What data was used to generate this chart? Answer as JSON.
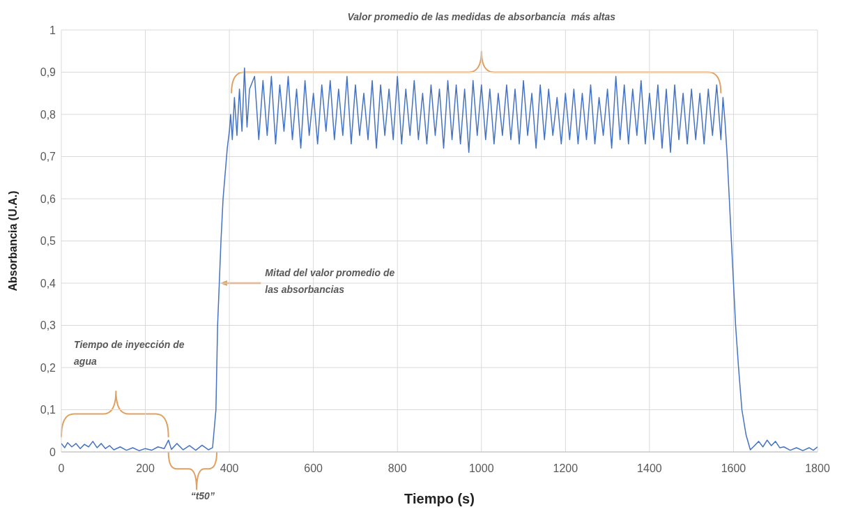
{
  "chart_data": {
    "type": "line",
    "xlabel": "Tiempo (s)",
    "ylabel": "Absorbancia (U.A.)",
    "xlim": [
      0,
      1800
    ],
    "xticks": [
      0,
      200,
      400,
      600,
      800,
      1000,
      1200,
      1400,
      1600,
      1800
    ],
    "ylim": [
      0,
      1
    ],
    "yticks": [
      0,
      {
        "value": 0.1,
        "label": "0,1"
      },
      {
        "value": 0.2,
        "label": "0,2"
      },
      {
        "value": 0.3,
        "label": "0,3"
      },
      {
        "value": 0.4,
        "label": "0,4"
      },
      {
        "value": 0.5,
        "label": "0,5"
      },
      {
        "value": 0.6,
        "label": "0,6"
      },
      {
        "value": 0.7,
        "label": "0,7"
      },
      {
        "value": 0.8,
        "label": "0,8"
      },
      {
        "value": 0.9,
        "label": "0,9"
      },
      1
    ],
    "grid": true,
    "annotations": [
      "Valor promedio de las medidas de absorbancia  más altas",
      "Mitad del valor promedio de las absorbancias",
      "Tiempo de inyección de agua",
      "“t50”"
    ],
    "x": [
      0,
      8,
      15,
      25,
      35,
      45,
      55,
      65,
      75,
      85,
      95,
      105,
      115,
      125,
      140,
      155,
      170,
      185,
      200,
      215,
      230,
      245,
      255,
      262,
      275,
      290,
      305,
      320,
      335,
      350,
      360,
      368,
      372,
      376,
      380,
      385,
      390,
      395,
      400,
      403,
      407,
      412,
      418,
      424,
      430,
      436,
      442,
      448,
      460,
      470,
      480,
      490,
      500,
      510,
      520,
      530,
      540,
      550,
      560,
      570,
      580,
      590,
      600,
      610,
      620,
      630,
      640,
      650,
      660,
      670,
      680,
      690,
      700,
      710,
      720,
      730,
      740,
      750,
      760,
      770,
      780,
      790,
      800,
      810,
      820,
      830,
      840,
      850,
      860,
      870,
      880,
      890,
      900,
      910,
      920,
      930,
      940,
      950,
      960,
      970,
      980,
      990,
      1000,
      1010,
      1020,
      1030,
      1040,
      1050,
      1060,
      1070,
      1080,
      1090,
      1100,
      1110,
      1120,
      1130,
      1140,
      1150,
      1160,
      1170,
      1180,
      1190,
      1200,
      1210,
      1220,
      1230,
      1240,
      1250,
      1260,
      1270,
      1280,
      1290,
      1300,
      1310,
      1320,
      1330,
      1340,
      1350,
      1360,
      1370,
      1380,
      1390,
      1400,
      1410,
      1420,
      1430,
      1440,
      1450,
      1460,
      1470,
      1480,
      1490,
      1500,
      1510,
      1520,
      1530,
      1540,
      1550,
      1560,
      1570,
      1575,
      1580,
      1585,
      1590,
      1595,
      1600,
      1605,
      1612,
      1620,
      1630,
      1640,
      1650,
      1660,
      1670,
      1680,
      1690,
      1700,
      1710,
      1720,
      1735,
      1750,
      1765,
      1780,
      1790,
      1800
    ],
    "series": [
      {
        "color": "#4472c4",
        "values": [
          0.02,
          0.01,
          0.022,
          0.012,
          0.02,
          0.008,
          0.018,
          0.012,
          0.025,
          0.01,
          0.02,
          0.008,
          0.015,
          0.005,
          0.012,
          0.004,
          0.01,
          0.003,
          0.008,
          0.004,
          0.012,
          0.008,
          0.028,
          0.006,
          0.02,
          0.005,
          0.015,
          0.004,
          0.016,
          0.005,
          0.01,
          0.1,
          0.3,
          0.4,
          0.5,
          0.6,
          0.66,
          0.72,
          0.76,
          0.8,
          0.74,
          0.84,
          0.75,
          0.86,
          0.76,
          0.91,
          0.77,
          0.86,
          0.89,
          0.74,
          0.88,
          0.75,
          0.89,
          0.73,
          0.87,
          0.76,
          0.89,
          0.74,
          0.86,
          0.72,
          0.88,
          0.75,
          0.85,
          0.73,
          0.87,
          0.76,
          0.88,
          0.74,
          0.86,
          0.75,
          0.89,
          0.73,
          0.87,
          0.75,
          0.85,
          0.74,
          0.88,
          0.72,
          0.87,
          0.75,
          0.86,
          0.74,
          0.89,
          0.73,
          0.86,
          0.75,
          0.88,
          0.74,
          0.85,
          0.73,
          0.87,
          0.75,
          0.86,
          0.72,
          0.88,
          0.74,
          0.87,
          0.73,
          0.86,
          0.71,
          0.88,
          0.75,
          0.87,
          0.74,
          0.86,
          0.73,
          0.85,
          0.75,
          0.87,
          0.74,
          0.86,
          0.73,
          0.88,
          0.75,
          0.85,
          0.72,
          0.87,
          0.74,
          0.86,
          0.75,
          0.84,
          0.73,
          0.85,
          0.74,
          0.86,
          0.73,
          0.85,
          0.74,
          0.87,
          0.73,
          0.84,
          0.75,
          0.86,
          0.72,
          0.89,
          0.74,
          0.87,
          0.73,
          0.86,
          0.75,
          0.88,
          0.73,
          0.85,
          0.74,
          0.87,
          0.72,
          0.86,
          0.71,
          0.87,
          0.74,
          0.85,
          0.73,
          0.86,
          0.74,
          0.85,
          0.73,
          0.86,
          0.75,
          0.87,
          0.74,
          0.84,
          0.78,
          0.7,
          0.6,
          0.5,
          0.4,
          0.3,
          0.2,
          0.1,
          0.04,
          0.005,
          0.015,
          0.025,
          0.012,
          0.028,
          0.015,
          0.025,
          0.01,
          0.012,
          0.004,
          0.01,
          0.003,
          0.01,
          0.004,
          0.012
        ]
      }
    ]
  }
}
